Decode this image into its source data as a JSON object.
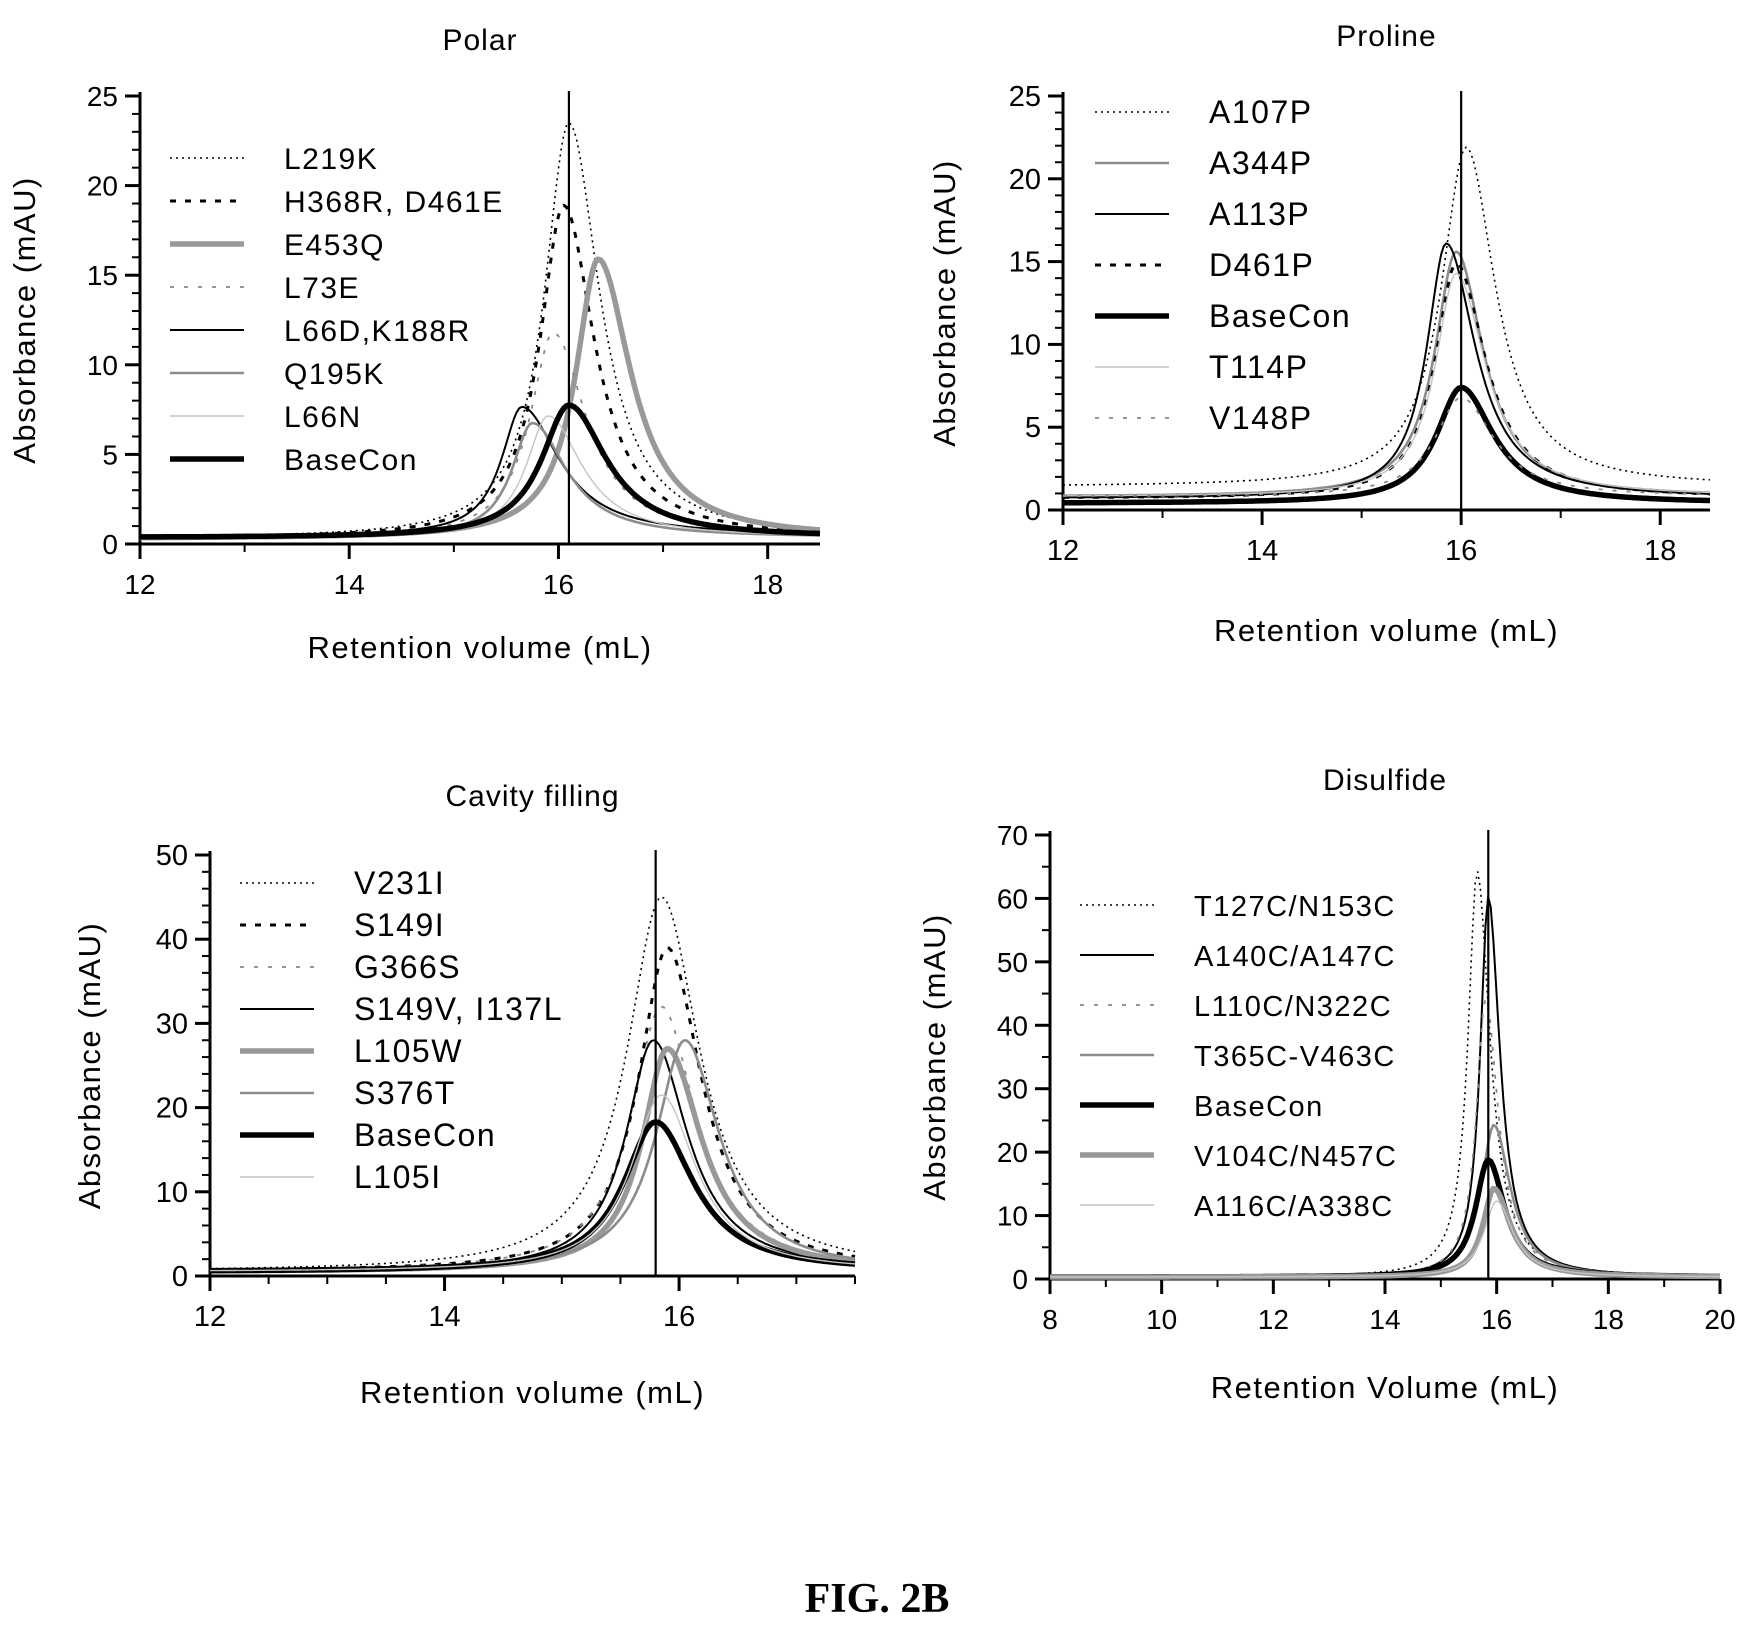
{
  "figure_caption": "FIG. 2B",
  "chart_data": [
    {
      "type": "line",
      "title": "Polar",
      "xlabel": "Retention  volume (mL)",
      "ylabel": "Absorbance  (mAU)",
      "xlim": [
        12,
        18.5
      ],
      "ylim": [
        0,
        25
      ],
      "xticks": [
        12,
        14,
        16,
        18
      ],
      "yticks": [
        0,
        5,
        10,
        15,
        20,
        25
      ],
      "x_minor_step": 1,
      "y_minor_step": 1,
      "vline": 16.1,
      "legend_position": "top-left",
      "series": [
        {
          "name": "L219K",
          "style": "dotted",
          "baseline": 0.3,
          "height": 23.2,
          "center": 16.1,
          "width_left": 0.36,
          "width_right": 0.45
        },
        {
          "name": "H368R, D461E",
          "style": "dashed",
          "baseline": 0.3,
          "height": 18.6,
          "center": 16.05,
          "width_left": 0.35,
          "width_right": 0.45
        },
        {
          "name": "E453Q",
          "style": "thick-gray",
          "baseline": 0.3,
          "height": 15.6,
          "center": 16.38,
          "width_left": 0.33,
          "width_right": 0.48
        },
        {
          "name": "L73E",
          "style": "gray-dashed",
          "baseline": 0.3,
          "height": 11.5,
          "center": 15.95,
          "width_left": 0.34,
          "width_right": 0.48
        },
        {
          "name": "L66D,K188R",
          "style": "solid",
          "baseline": 0.45,
          "height": 7.2,
          "center": 15.65,
          "width_left": 0.3,
          "width_right": 0.55
        },
        {
          "name": "Q195K",
          "style": "gray",
          "baseline": 0.35,
          "height": 6.4,
          "center": 15.75,
          "width_left": 0.3,
          "width_right": 0.5
        },
        {
          "name": "L66N",
          "style": "light",
          "baseline": 0.35,
          "height": 6.8,
          "center": 15.9,
          "width_left": 0.32,
          "width_right": 0.5
        },
        {
          "name": "BaseCon",
          "style": "thick-black",
          "baseline": 0.35,
          "height": 7.4,
          "center": 16.1,
          "width_left": 0.4,
          "width_right": 0.55
        }
      ]
    },
    {
      "type": "line",
      "title": "Proline",
      "xlabel": "Retention  volume (mL)",
      "ylabel": "Absorbance  (mAU)",
      "xlim": [
        12,
        18.5
      ],
      "ylim": [
        0,
        25
      ],
      "xticks": [
        12,
        14,
        16,
        18
      ],
      "yticks": [
        0,
        5,
        10,
        15,
        20,
        25
      ],
      "x_minor_step": 1,
      "y_minor_step": 1,
      "vline": 16.0,
      "legend_position": "top-left",
      "series": [
        {
          "name": "A107P",
          "style": "dotted",
          "baseline": 1.4,
          "height": 20.5,
          "center": 16.05,
          "width_left": 0.38,
          "width_right": 0.45
        },
        {
          "name": "A344P",
          "style": "gray",
          "baseline": 0.8,
          "height": 14.8,
          "center": 15.95,
          "width_left": 0.33,
          "width_right": 0.42
        },
        {
          "name": "A113P",
          "style": "solid",
          "baseline": 0.7,
          "height": 15.4,
          "center": 15.85,
          "width_left": 0.3,
          "width_right": 0.45
        },
        {
          "name": "D461P",
          "style": "dashed",
          "baseline": 0.7,
          "height": 14.2,
          "center": 15.95,
          "width_left": 0.32,
          "width_right": 0.45
        },
        {
          "name": "BaseCon",
          "style": "thick-black",
          "baseline": 0.4,
          "height": 7.0,
          "center": 16.0,
          "width_left": 0.38,
          "width_right": 0.5
        },
        {
          "name": "T114P",
          "style": "light",
          "baseline": 0.8,
          "height": 13.5,
          "center": 15.95,
          "width_left": 0.32,
          "width_right": 0.45
        },
        {
          "name": "V148P",
          "style": "gray-dashed",
          "baseline": 0.8,
          "height": 6.0,
          "center": 16.0,
          "width_left": 0.4,
          "width_right": 0.5
        }
      ]
    },
    {
      "type": "line",
      "title": "Cavity filling",
      "xlabel": "Retention  volume (mL)",
      "ylabel": "Absorbance  (mAU)",
      "xlim": [
        12,
        17.5
      ],
      "ylim": [
        0,
        50
      ],
      "xticks": [
        12,
        14,
        16
      ],
      "yticks": [
        0,
        10,
        20,
        30,
        40,
        50
      ],
      "x_minor_step": 0.5,
      "y_minor_step": 2,
      "vline": 15.8,
      "legend_position": "top-left",
      "series": [
        {
          "name": "V231I",
          "style": "dotted",
          "baseline": 0.5,
          "height": 44.5,
          "center": 15.85,
          "width_left": 0.45,
          "width_right": 0.5
        },
        {
          "name": "S149I",
          "style": "dashed",
          "baseline": 0.5,
          "height": 38.5,
          "center": 15.9,
          "width_left": 0.38,
          "width_right": 0.45
        },
        {
          "name": "G366S",
          "style": "gray-dashed",
          "baseline": 0.5,
          "height": 31.5,
          "center": 15.85,
          "width_left": 0.4,
          "width_right": 0.45
        },
        {
          "name": "S149V, I137L",
          "style": "solid",
          "baseline": 0.5,
          "height": 27.5,
          "center": 15.78,
          "width_left": 0.36,
          "width_right": 0.45
        },
        {
          "name": "L105W",
          "style": "thick-gray",
          "baseline": 0.5,
          "height": 26.5,
          "center": 15.9,
          "width_left": 0.33,
          "width_right": 0.45
        },
        {
          "name": "S376T",
          "style": "gray",
          "baseline": 0.5,
          "height": 27.5,
          "center": 16.05,
          "width_left": 0.38,
          "width_right": 0.45
        },
        {
          "name": "BaseCon",
          "style": "thick-black",
          "baseline": 0.5,
          "height": 17.8,
          "center": 15.8,
          "width_left": 0.42,
          "width_right": 0.5
        },
        {
          "name": "L105I",
          "style": "light",
          "baseline": 0.5,
          "height": 21.0,
          "center": 15.85,
          "width_left": 0.4,
          "width_right": 0.45
        }
      ]
    },
    {
      "type": "line",
      "title": "Disulfide",
      "xlabel": "Retention Volume (mL)",
      "ylabel": "Absorbance  (mAU)",
      "xlim": [
        8,
        20
      ],
      "ylim": [
        0,
        70
      ],
      "xticks": [
        8,
        10,
        12,
        14,
        16,
        18,
        20
      ],
      "yticks": [
        0,
        10,
        20,
        30,
        40,
        50,
        60,
        70
      ],
      "x_minor_step": 1,
      "y_minor_step": 5,
      "vline": 15.85,
      "legend_position": "top-left",
      "series": [
        {
          "name": "T127C/N153C",
          "style": "dotted",
          "baseline": 0.3,
          "height": 64.0,
          "center": 15.65,
          "width_left": 0.25,
          "width_right": 0.35
        },
        {
          "name": "A140C/A147C",
          "style": "solid",
          "baseline": 0.3,
          "height": 60.0,
          "center": 15.85,
          "width_left": 0.22,
          "width_right": 0.32
        },
        {
          "name": "L110C/N322C",
          "style": "gray-dashed",
          "baseline": 0.3,
          "height": 44.0,
          "center": 15.8,
          "width_left": 0.25,
          "width_right": 0.35
        },
        {
          "name": "T365C-V463C",
          "style": "gray",
          "baseline": 0.3,
          "height": 24.0,
          "center": 15.95,
          "width_left": 0.35,
          "width_right": 0.45
        },
        {
          "name": "BaseCon",
          "style": "thick-black",
          "baseline": 0.3,
          "height": 18.5,
          "center": 15.85,
          "width_left": 0.35,
          "width_right": 0.45
        },
        {
          "name": " V104C/N457C",
          "style": "thick-gray",
          "baseline": 0.3,
          "height": 14.0,
          "center": 15.95,
          "width_left": 0.3,
          "width_right": 0.45
        },
        {
          "name": "A116C/A338C",
          "style": "light",
          "baseline": 0.3,
          "height": 12.0,
          "center": 16.0,
          "width_left": 0.35,
          "width_right": 0.45
        }
      ]
    }
  ]
}
